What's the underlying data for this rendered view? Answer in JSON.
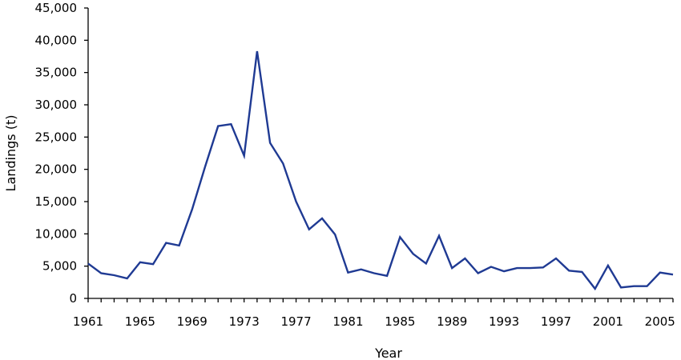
{
  "chart_data": {
    "type": "line",
    "xlabel": "Year",
    "ylabel": "Landings (t)",
    "xlim": [
      1961,
      2005
    ],
    "ylim": [
      0,
      45000
    ],
    "x_ticks": [
      "1961",
      "1965",
      "1969",
      "1973",
      "1977",
      "1981",
      "1985",
      "1989",
      "1993",
      "1997",
      "2001",
      "2005"
    ],
    "y_ticks": [
      "0",
      "5,000",
      "10,000",
      "15,000",
      "20,000",
      "25,000",
      "30,000",
      "35,000",
      "40,000",
      "45,000"
    ],
    "grid": false,
    "legend": "none",
    "line_color": "#1f3a93",
    "series": [
      {
        "x": [
          1961,
          1962,
          1963,
          1964,
          1965,
          1966,
          1967,
          1968,
          1969,
          1970,
          1971,
          1972,
          1973,
          1974,
          1975,
          1976,
          1977,
          1978,
          1979,
          1980,
          1981,
          1982,
          1983,
          1984,
          1985,
          1986,
          1987,
          1988,
          1989,
          1990,
          1991,
          1992,
          1993,
          1994,
          1995,
          1996,
          1997,
          1998,
          1999,
          2000,
          2001,
          2002,
          2003,
          2004,
          2005,
          2006
        ],
        "values": [
          5400,
          3900,
          3600,
          3100,
          5600,
          5300,
          8600,
          8200,
          13800,
          20400,
          26700,
          27000,
          22100,
          38300,
          24100,
          20900,
          15000,
          10700,
          12400,
          9900,
          4000,
          4500,
          3900,
          3500,
          9500,
          6900,
          5400,
          9700,
          4700,
          6200,
          3900,
          4900,
          4200,
          4700,
          4700,
          4800,
          6200,
          4300,
          4100,
          1500,
          5100,
          1700,
          1900,
          1900,
          4000,
          3700
        ]
      }
    ]
  }
}
